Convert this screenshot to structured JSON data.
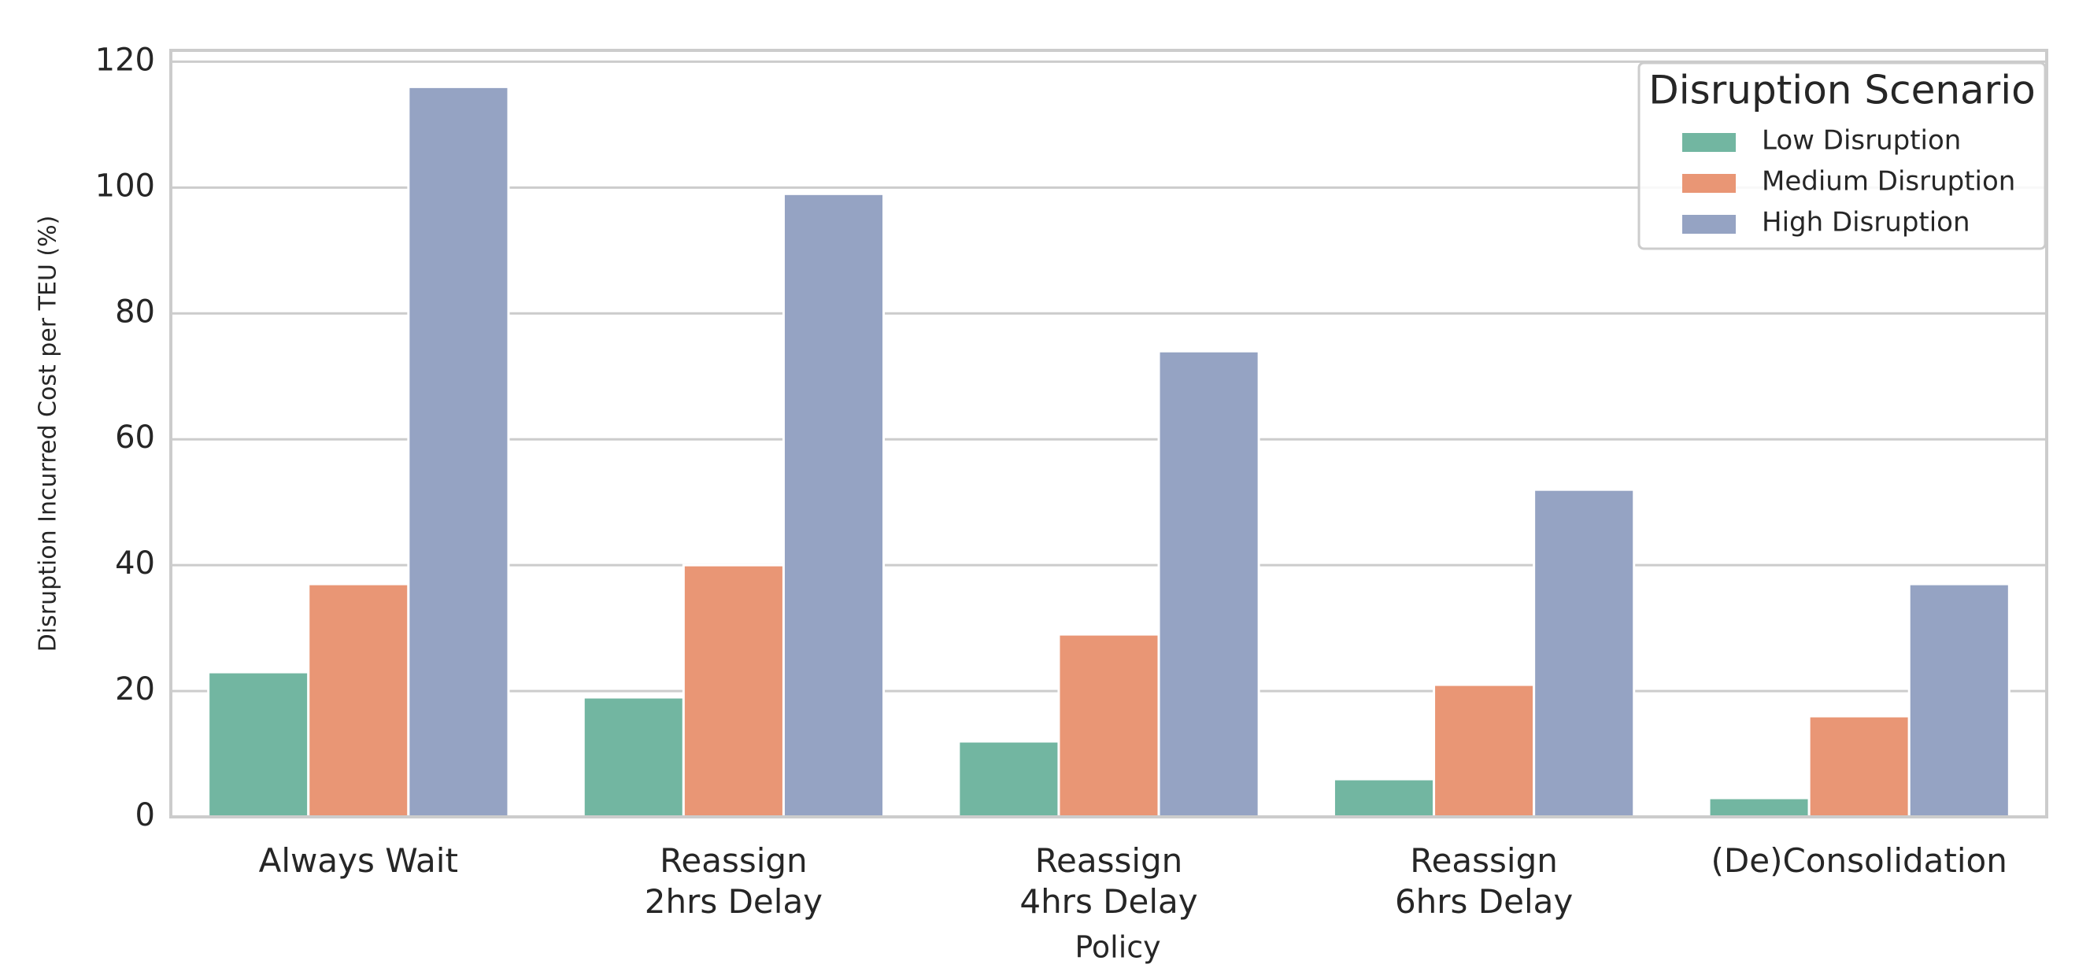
{
  "chart_data": {
    "type": "bar",
    "x_label": "Policy",
    "y_label": "Disruption Incurred Cost per TEU (%)",
    "categories": [
      "Always Wait",
      "Reassign\n2hrs Delay",
      "Reassign\n4hrs Delay",
      "Reassign\n6hrs Delay",
      "(De)Consolidation"
    ],
    "series": [
      {
        "name": "Low Disruption",
        "color": "#72b6a1",
        "values": [
          23,
          19,
          12,
          6,
          3
        ]
      },
      {
        "name": "Medium Disruption",
        "color": "#e99675",
        "values": [
          37,
          40,
          29,
          21,
          16
        ]
      },
      {
        "name": "High Disruption",
        "color": "#95a3c3",
        "values": [
          116,
          99,
          74,
          52,
          37
        ]
      }
    ],
    "legend_title": "Disruption Scenario",
    "legend_position": "upper right",
    "ylim": [
      0,
      121.8
    ],
    "yticks": [
      0,
      20,
      40,
      60,
      80,
      100,
      120
    ],
    "grid": true
  }
}
